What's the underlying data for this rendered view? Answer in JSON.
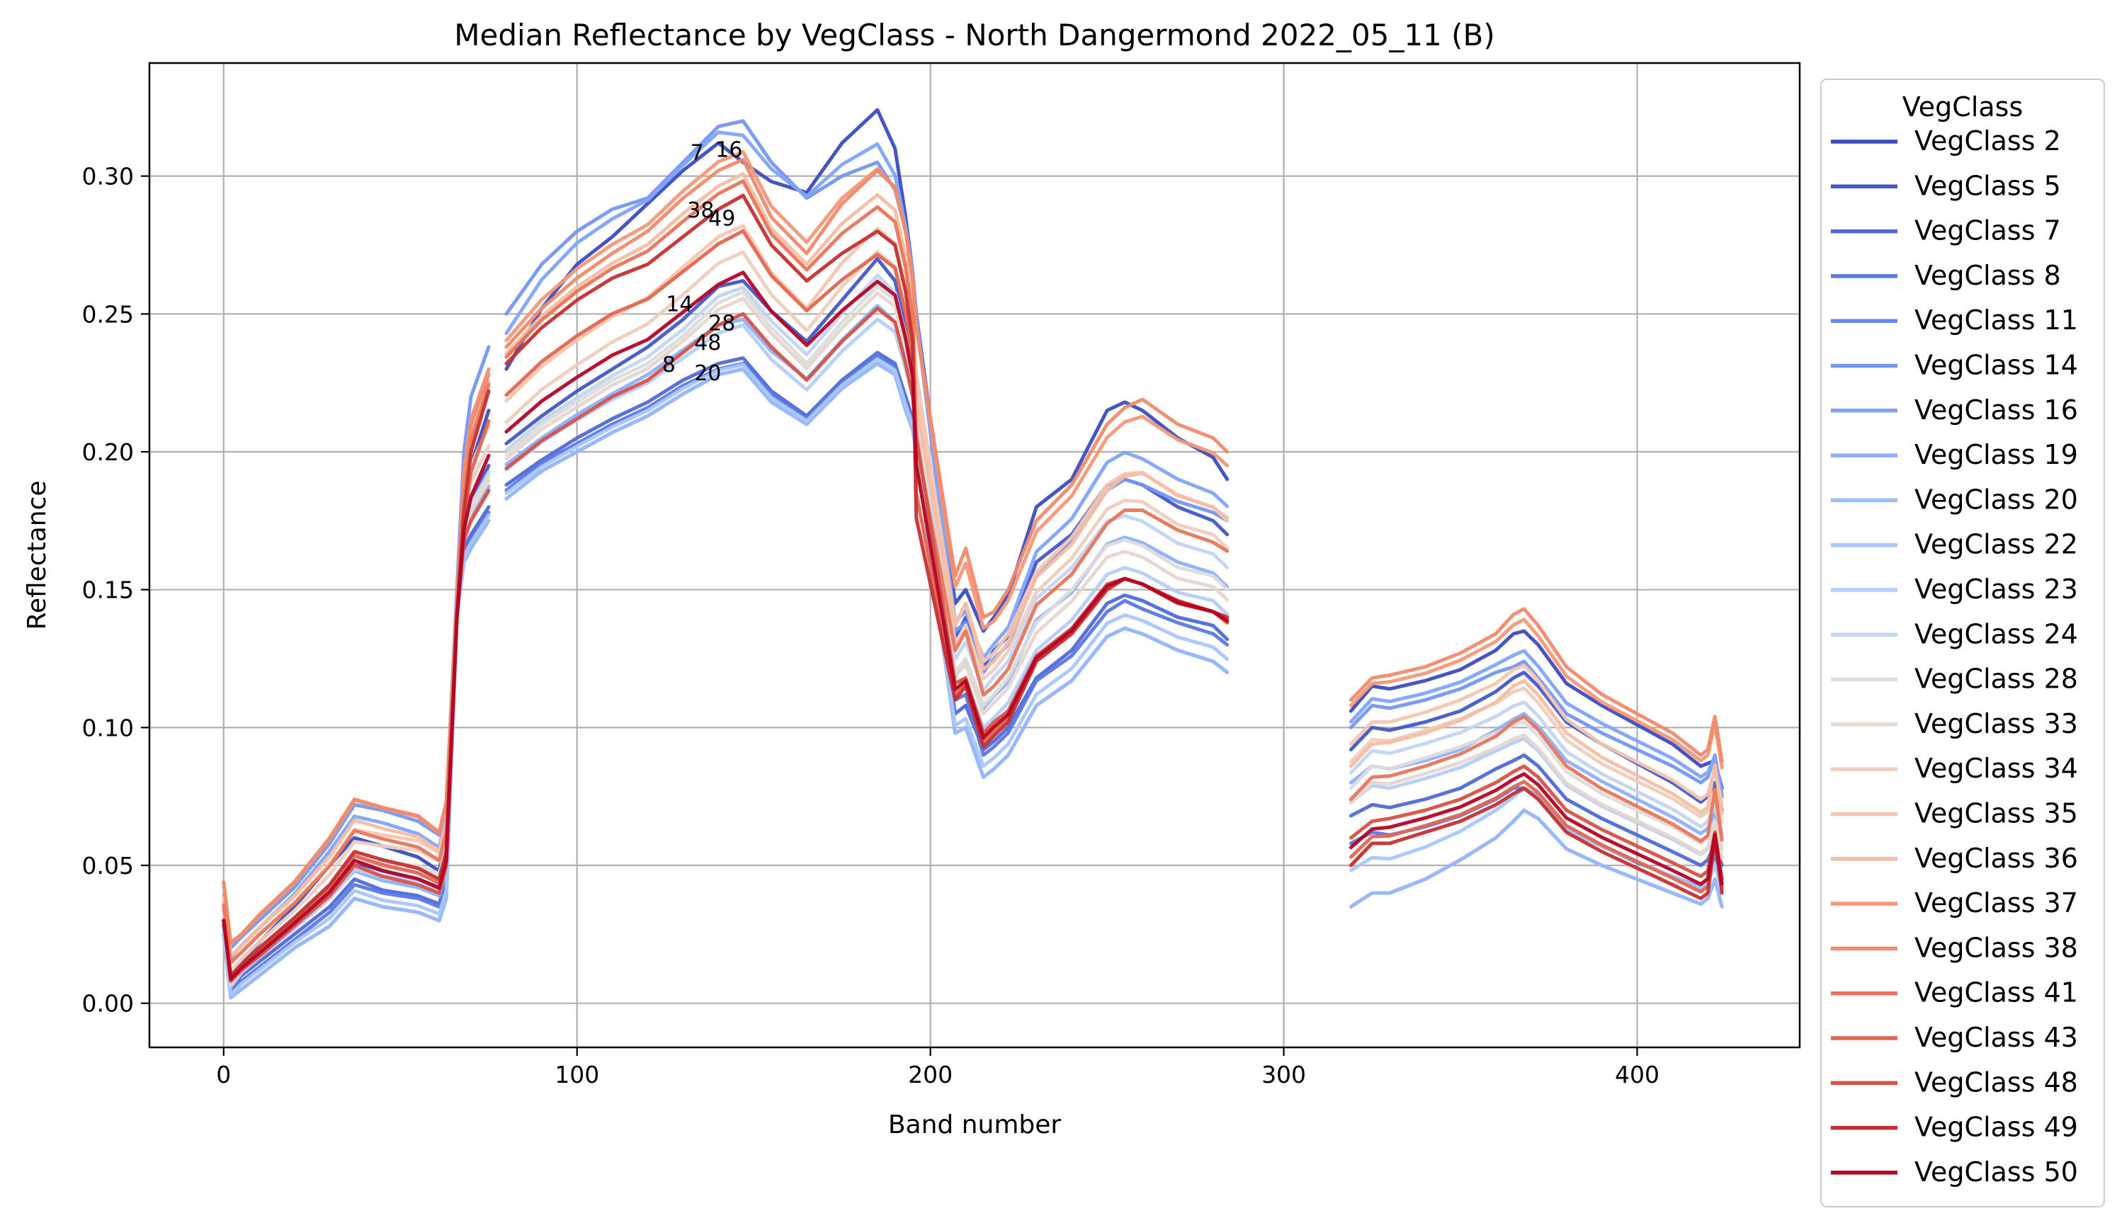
{
  "chart_data": {
    "type": "line",
    "title": "Median Reflectance by VegClass - North Dangermond 2022_05_11 (B)",
    "xlabel": "Band number",
    "ylabel": "Reflectance",
    "xlim": [
      -21,
      446
    ],
    "ylim": [
      -0.016,
      0.341
    ],
    "xticks": [
      0,
      100,
      200,
      300,
      400
    ],
    "yticks": [
      0.0,
      0.05,
      0.1,
      0.15,
      0.2,
      0.25,
      0.3
    ],
    "ytick_labels": [
      "0.00",
      "0.05",
      "0.10",
      "0.15",
      "0.20",
      "0.25",
      "0.30"
    ],
    "grid": true,
    "legend": {
      "title": "VegClass",
      "placement": "outside-right",
      "entries": [
        "VegClass 2",
        "VegClass 5",
        "VegClass 7",
        "VegClass 8",
        "VegClass 11",
        "VegClass 14",
        "VegClass 16",
        "VegClass 19",
        "VegClass 20",
        "VegClass 22",
        "VegClass 23",
        "VegClass 24",
        "VegClass 28",
        "VegClass 33",
        "VegClass 34",
        "VegClass 35",
        "VegClass 36",
        "VegClass 37",
        "VegClass 38",
        "VegClass 41",
        "VegClass 43",
        "VegClass 48",
        "VegClass 49",
        "VegClass 50"
      ],
      "colors": [
        "#3b4cc0",
        "#4358cb",
        "#4f69d9",
        "#5a78e4",
        "#6788ee",
        "#7396f5",
        "#81a4fb",
        "#8db0fe",
        "#9bbcff",
        "#a9c6fd",
        "#b5cdfa",
        "#c3d5f4",
        "#dddcdc",
        "#e6d7cf",
        "#eecfbf",
        "#f3c7b1",
        "#f6bea4",
        "#f4987a",
        "#f08a6c",
        "#e8765c",
        "#e16751",
        "#d65244",
        "#c43032",
        "#b40426"
      ]
    },
    "annotations": [
      {
        "text": "7",
        "x": 134,
        "y": 0.306
      },
      {
        "text": "16",
        "x": 143,
        "y": 0.307
      },
      {
        "text": "38",
        "x": 135,
        "y": 0.285
      },
      {
        "text": "49",
        "x": 141,
        "y": 0.282
      },
      {
        "text": "14",
        "x": 129,
        "y": 0.251
      },
      {
        "text": "28",
        "x": 141,
        "y": 0.244
      },
      {
        "text": "48",
        "x": 137,
        "y": 0.237
      },
      {
        "text": "8",
        "x": 126,
        "y": 0.229
      },
      {
        "text": "20",
        "x": 137,
        "y": 0.226
      }
    ],
    "x": [
      0,
      2,
      5,
      10,
      20,
      30,
      37,
      45,
      55,
      61,
      63,
      66,
      68,
      70,
      75,
      80,
      90,
      100,
      110,
      120,
      130,
      140,
      147,
      155,
      165,
      175,
      185,
      190,
      193,
      195,
      196,
      207,
      210,
      215,
      218,
      222,
      230,
      240,
      250,
      255,
      260,
      270,
      280,
      284,
      319,
      325,
      330,
      340,
      350,
      360,
      365,
      368,
      372,
      380,
      390,
      400,
      410,
      418,
      420,
      422,
      424
    ],
    "series": [
      {
        "name": "VegClass 2",
        "shape": [
          0.03,
          0.01,
          0.015,
          0.022,
          0.035,
          0.05,
          0.06,
          0.057,
          0.053,
          0.048,
          0.06,
          0.14,
          0.18,
          0.195,
          0.215,
          0.23,
          0.252,
          0.268,
          0.278,
          0.29,
          0.302,
          0.312,
          0.305,
          0.298,
          0.294,
          0.312,
          0.324,
          0.31,
          0.285,
          0.265,
          0.25,
          0.145,
          0.15,
          0.135,
          0.14,
          0.148,
          0.18,
          0.19,
          0.215,
          0.218,
          0.215,
          0.205,
          0.198,
          0.19,
          0.106,
          0.115,
          0.114,
          0.117,
          0.121,
          0.128,
          0.134,
          0.135,
          0.13,
          0.116,
          0.108,
          0.101,
          0.094,
          0.086,
          0.087,
          0.088,
          0.078
        ]
      },
      {
        "name": "VegClass 5",
        "shape": [
          0.03,
          0.008,
          0.013,
          0.019,
          0.03,
          0.042,
          0.051,
          0.048,
          0.045,
          0.042,
          0.053,
          0.14,
          0.17,
          0.182,
          0.195,
          0.203,
          0.213,
          0.222,
          0.23,
          0.238,
          0.248,
          0.26,
          0.262,
          0.251,
          0.24,
          0.255,
          0.27,
          0.262,
          0.245,
          0.232,
          0.218,
          0.132,
          0.14,
          0.122,
          0.128,
          0.133,
          0.16,
          0.17,
          0.188,
          0.19,
          0.188,
          0.18,
          0.175,
          0.17,
          0.092,
          0.1,
          0.099,
          0.102,
          0.106,
          0.113,
          0.118,
          0.12,
          0.115,
          0.102,
          0.094,
          0.087,
          0.08,
          0.073,
          0.075,
          0.08,
          0.07
        ]
      },
      {
        "name": "VegClass 7",
        "shape": [
          0.03,
          0.005,
          0.01,
          0.015,
          0.025,
          0.035,
          0.045,
          0.041,
          0.039,
          0.036,
          0.045,
          0.14,
          0.165,
          0.17,
          0.18,
          0.188,
          0.197,
          0.205,
          0.212,
          0.218,
          0.226,
          0.232,
          0.234,
          0.222,
          0.213,
          0.226,
          0.236,
          0.232,
          0.22,
          0.212,
          0.2,
          0.105,
          0.108,
          0.092,
          0.095,
          0.1,
          0.118,
          0.128,
          0.145,
          0.148,
          0.146,
          0.14,
          0.137,
          0.132,
          0.068,
          0.072,
          0.071,
          0.074,
          0.078,
          0.085,
          0.088,
          0.09,
          0.086,
          0.074,
          0.067,
          0.061,
          0.055,
          0.05,
          0.052,
          0.058,
          0.05
        ]
      },
      {
        "name": "VegClass 8",
        "shape": [
          0.028,
          0.005,
          0.008,
          0.013,
          0.023,
          0.033,
          0.043,
          0.04,
          0.038,
          0.035,
          0.044,
          0.14,
          0.162,
          0.168,
          0.178,
          0.186,
          0.196,
          0.203,
          0.21,
          0.216,
          0.224,
          0.23,
          0.232,
          0.221,
          0.212,
          0.225,
          0.235,
          0.231,
          0.219,
          0.211,
          0.2,
          0.11,
          0.112,
          0.09,
          0.093,
          0.098,
          0.117,
          0.126,
          0.142,
          0.146,
          0.143,
          0.138,
          0.134,
          0.13,
          0.058,
          0.062,
          0.061,
          0.064,
          0.068,
          0.074,
          0.078,
          0.078,
          0.075,
          0.063,
          0.057,
          0.051,
          0.046,
          0.042,
          0.044,
          0.055,
          0.042
        ]
      },
      {
        "name": "VegClass 11",
        "shape": [
          0.025,
          0.002,
          0.005,
          0.01,
          0.02,
          0.028,
          0.038,
          0.035,
          0.033,
          0.03,
          0.038,
          0.14,
          0.16,
          0.165,
          0.175,
          0.183,
          0.193,
          0.2,
          0.207,
          0.213,
          0.221,
          0.228,
          0.23,
          0.218,
          0.21,
          0.223,
          0.232,
          0.228,
          0.215,
          0.208,
          0.2,
          0.098,
          0.1,
          0.082,
          0.085,
          0.09,
          0.108,
          0.117,
          0.133,
          0.136,
          0.134,
          0.128,
          0.124,
          0.12,
          0.035,
          0.04,
          0.04,
          0.045,
          0.052,
          0.06,
          0.066,
          0.07,
          0.067,
          0.056,
          0.05,
          0.045,
          0.04,
          0.036,
          0.038,
          0.045,
          0.035
        ]
      },
      {
        "name": "VegClass 14",
        "shape": [
          0.044,
          0.02,
          0.024,
          0.03,
          0.042,
          0.058,
          0.072,
          0.07,
          0.066,
          0.061,
          0.072,
          0.15,
          0.2,
          0.22,
          0.238,
          0.25,
          0.268,
          0.28,
          0.288,
          0.292,
          0.305,
          0.318,
          0.32,
          0.305,
          0.292,
          0.3,
          0.305,
          0.295,
          0.28,
          0.265,
          0.248,
          0.135,
          0.138,
          0.12,
          0.125,
          0.13,
          0.155,
          0.168,
          0.186,
          0.19,
          0.188,
          0.182,
          0.178,
          0.175,
          0.1,
          0.108,
          0.107,
          0.11,
          0.114,
          0.12,
          0.122,
          0.124,
          0.118,
          0.105,
          0.098,
          0.092,
          0.086,
          0.08,
          0.082,
          0.09,
          0.075
        ]
      },
      {
        "name": "VegClass 28",
        "shape": [
          0.03,
          0.007,
          0.012,
          0.018,
          0.029,
          0.041,
          0.052,
          0.051,
          0.05,
          0.047,
          0.056,
          0.14,
          0.172,
          0.18,
          0.191,
          0.199,
          0.21,
          0.218,
          0.226,
          0.232,
          0.242,
          0.254,
          0.258,
          0.245,
          0.232,
          0.247,
          0.26,
          0.255,
          0.24,
          0.228,
          0.212,
          0.12,
          0.125,
          0.108,
          0.112,
          0.118,
          0.138,
          0.15,
          0.166,
          0.168,
          0.166,
          0.158,
          0.155,
          0.15,
          0.078,
          0.086,
          0.085,
          0.089,
          0.093,
          0.098,
          0.101,
          0.102,
          0.097,
          0.084,
          0.076,
          0.07,
          0.064,
          0.058,
          0.06,
          0.066,
          0.056
        ]
      },
      {
        "name": "VegClass 38",
        "shape": [
          0.044,
          0.022,
          0.025,
          0.032,
          0.044,
          0.06,
          0.074,
          0.071,
          0.068,
          0.062,
          0.073,
          0.145,
          0.19,
          0.21,
          0.228,
          0.238,
          0.252,
          0.263,
          0.272,
          0.28,
          0.292,
          0.302,
          0.306,
          0.285,
          0.272,
          0.29,
          0.302,
          0.296,
          0.28,
          0.262,
          0.245,
          0.155,
          0.165,
          0.14,
          0.142,
          0.15,
          0.175,
          0.188,
          0.21,
          0.216,
          0.219,
          0.21,
          0.205,
          0.2,
          0.11,
          0.118,
          0.119,
          0.122,
          0.127,
          0.134,
          0.141,
          0.143,
          0.137,
          0.122,
          0.112,
          0.105,
          0.098,
          0.09,
          0.092,
          0.104,
          0.088
        ]
      },
      {
        "name": "VegClass 48",
        "shape": [
          0.03,
          0.008,
          0.012,
          0.017,
          0.028,
          0.039,
          0.05,
          0.046,
          0.043,
          0.04,
          0.05,
          0.14,
          0.168,
          0.175,
          0.186,
          0.194,
          0.204,
          0.212,
          0.22,
          0.226,
          0.236,
          0.246,
          0.25,
          0.238,
          0.226,
          0.24,
          0.252,
          0.247,
          0.232,
          0.22,
          0.206,
          0.116,
          0.118,
          0.098,
          0.102,
          0.106,
          0.126,
          0.136,
          0.152,
          0.154,
          0.152,
          0.145,
          0.142,
          0.138,
          0.06,
          0.066,
          0.067,
          0.07,
          0.074,
          0.08,
          0.084,
          0.086,
          0.082,
          0.07,
          0.063,
          0.057,
          0.051,
          0.046,
          0.048,
          0.062,
          0.045
        ]
      },
      {
        "name": "VegClass 49",
        "shape": [
          0.03,
          0.01,
          0.014,
          0.02,
          0.031,
          0.043,
          0.055,
          0.052,
          0.049,
          0.045,
          0.055,
          0.14,
          0.178,
          0.2,
          0.222,
          0.232,
          0.245,
          0.255,
          0.263,
          0.268,
          0.278,
          0.288,
          0.293,
          0.275,
          0.262,
          0.272,
          0.28,
          0.275,
          0.258,
          0.24,
          0.176,
          0.11,
          0.115,
          0.093,
          0.097,
          0.102,
          0.124,
          0.134,
          0.15,
          0.154,
          0.152,
          0.146,
          0.142,
          0.14,
          0.05,
          0.058,
          0.058,
          0.062,
          0.066,
          0.072,
          0.076,
          0.078,
          0.074,
          0.062,
          0.055,
          0.049,
          0.043,
          0.038,
          0.04,
          0.06,
          0.04
        ]
      }
    ]
  }
}
